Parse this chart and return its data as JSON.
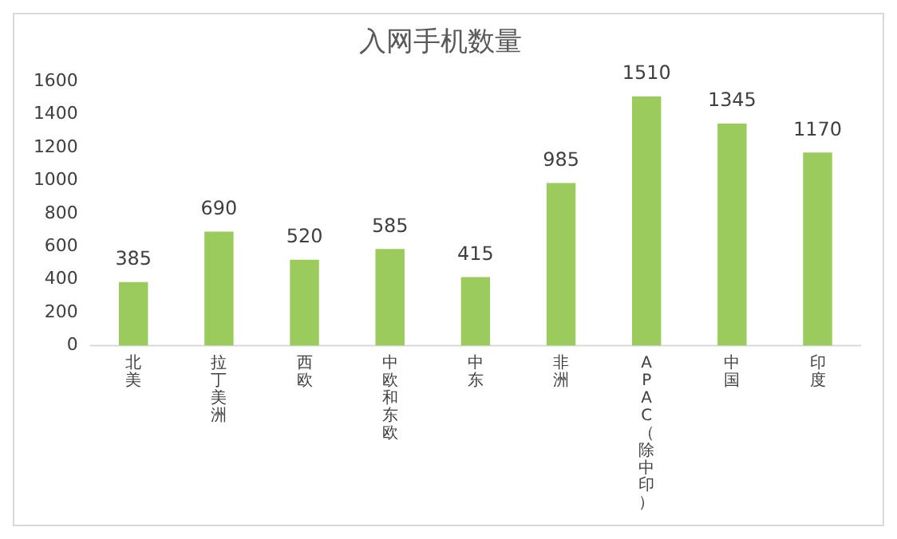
{
  "chart_data": {
    "type": "bar",
    "title": "入网手机数量",
    "categories": [
      "北美",
      "拉丁美洲",
      "西欧",
      "中欧和东欧",
      "中东",
      "非洲",
      "APAC（除中印）",
      "中国",
      "印度"
    ],
    "values": [
      385,
      690,
      520,
      585,
      415,
      985,
      1510,
      1345,
      1170
    ],
    "color": "#9bcb5d",
    "ylim": [
      0,
      1600
    ],
    "yticks": [
      0,
      200,
      400,
      600,
      800,
      1000,
      1200,
      1400,
      1600
    ],
    "grid": false,
    "data_labels": true
  }
}
